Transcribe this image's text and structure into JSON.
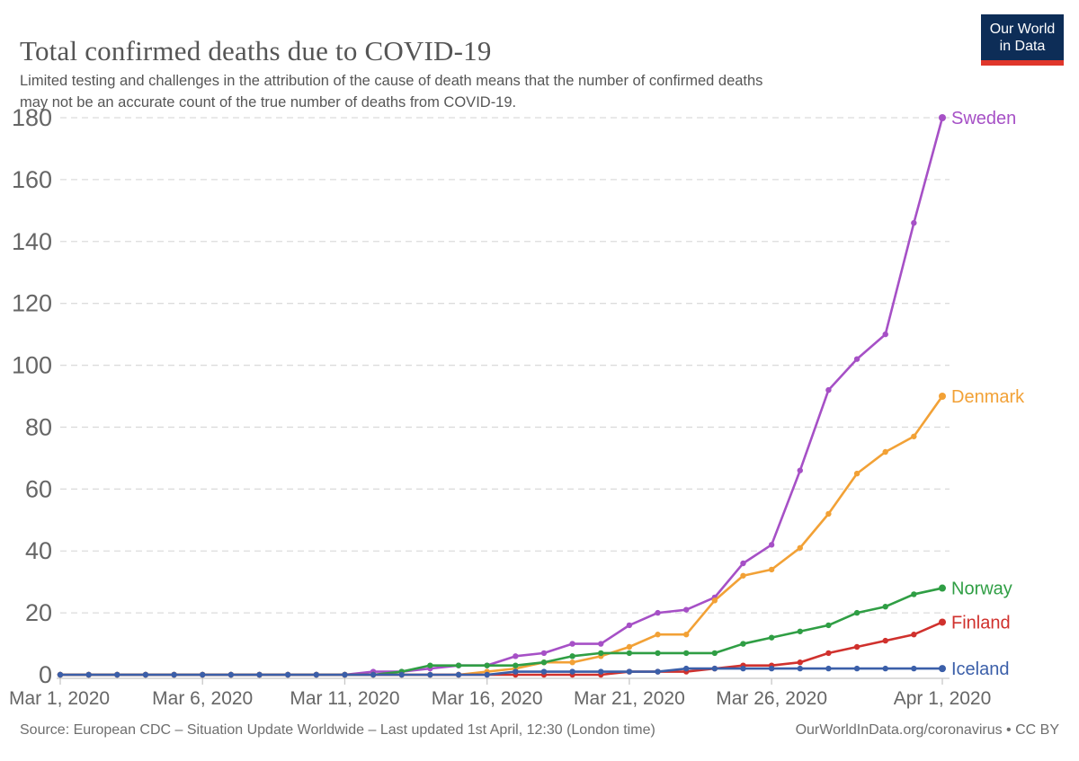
{
  "page": {
    "title": "Total confirmed deaths due to COVID-19",
    "subtitle": "Limited testing and challenges in the attribution of the cause of death means that the number of confirmed deaths\nmay not be an accurate count of the true number of deaths from COVID-19."
  },
  "logo": {
    "line1": "Our World",
    "line2": "in Data",
    "bg_color": "#0d2d57",
    "accent_color": "#e0362b"
  },
  "footer": {
    "source": "Source: European CDC – Situation Update Worldwide – Last updated 1st April, 12:30 (London time)",
    "link": "OurWorldInData.org/coronavirus",
    "license_suffix": " • CC BY"
  },
  "chart_data": {
    "type": "line",
    "title": "Total confirmed deaths due to COVID-19",
    "xlabel": "",
    "ylabel": "",
    "ylim": [
      0,
      180
    ],
    "y_ticks": [
      0,
      20,
      40,
      60,
      80,
      100,
      120,
      140,
      160,
      180
    ],
    "grid": "horizontal-dashed",
    "legend_position": "line-end-labels",
    "axis_color": "#666666",
    "grid_color": "#dcdcdc",
    "x_labels": [
      "Mar 1, 2020",
      "Mar 2, 2020",
      "Mar 3, 2020",
      "Mar 4, 2020",
      "Mar 5, 2020",
      "Mar 6, 2020",
      "Mar 7, 2020",
      "Mar 8, 2020",
      "Mar 9, 2020",
      "Mar 10, 2020",
      "Mar 11, 2020",
      "Mar 12, 2020",
      "Mar 13, 2020",
      "Mar 14, 2020",
      "Mar 15, 2020",
      "Mar 16, 2020",
      "Mar 17, 2020",
      "Mar 18, 2020",
      "Mar 19, 2020",
      "Mar 20, 2020",
      "Mar 21, 2020",
      "Mar 22, 2020",
      "Mar 23, 2020",
      "Mar 24, 2020",
      "Mar 25, 2020",
      "Mar 26, 2020",
      "Mar 27, 2020",
      "Mar 28, 2020",
      "Mar 29, 2020",
      "Mar 30, 2020",
      "Mar 31, 2020",
      "Apr 1, 2020"
    ],
    "x_tick_indices": [
      0,
      5,
      10,
      15,
      20,
      25,
      31
    ],
    "x_tick_labels": [
      "Mar 1, 2020",
      "Mar 6, 2020",
      "Mar 11, 2020",
      "Mar 16, 2020",
      "Mar 21, 2020",
      "Mar 26, 2020",
      "Apr 1, 2020"
    ],
    "series": [
      {
        "name": "Sweden",
        "color": "#a650c6",
        "values": [
          0,
          0,
          0,
          0,
          0,
          0,
          0,
          0,
          0,
          0,
          0,
          1,
          1,
          2,
          3,
          3,
          6,
          7,
          10,
          10,
          16,
          20,
          21,
          25,
          36,
          42,
          66,
          92,
          102,
          110,
          146,
          180
        ]
      },
      {
        "name": "Denmark",
        "color": "#f2a136",
        "values": [
          0,
          0,
          0,
          0,
          0,
          0,
          0,
          0,
          0,
          0,
          0,
          0,
          0,
          0,
          0,
          1,
          2,
          4,
          4,
          6,
          9,
          13,
          13,
          24,
          32,
          34,
          41,
          52,
          65,
          72,
          77,
          90
        ]
      },
      {
        "name": "Norway",
        "color": "#2f9e44",
        "values": [
          0,
          0,
          0,
          0,
          0,
          0,
          0,
          0,
          0,
          0,
          0,
          0,
          1,
          3,
          3,
          3,
          3,
          4,
          6,
          7,
          7,
          7,
          7,
          7,
          10,
          12,
          14,
          16,
          20,
          22,
          26,
          28
        ]
      },
      {
        "name": "Finland",
        "color": "#d0312d",
        "values": [
          0,
          0,
          0,
          0,
          0,
          0,
          0,
          0,
          0,
          0,
          0,
          0,
          0,
          0,
          0,
          0,
          0,
          0,
          0,
          0,
          1,
          1,
          1,
          2,
          3,
          3,
          4,
          7,
          9,
          11,
          13,
          17
        ]
      },
      {
        "name": "Iceland",
        "color": "#3b5fa9",
        "values": [
          0,
          0,
          0,
          0,
          0,
          0,
          0,
          0,
          0,
          0,
          0,
          0,
          0,
          0,
          0,
          0,
          1,
          1,
          1,
          1,
          1,
          1,
          2,
          2,
          2,
          2,
          2,
          2,
          2,
          2,
          2,
          2
        ]
      }
    ]
  }
}
